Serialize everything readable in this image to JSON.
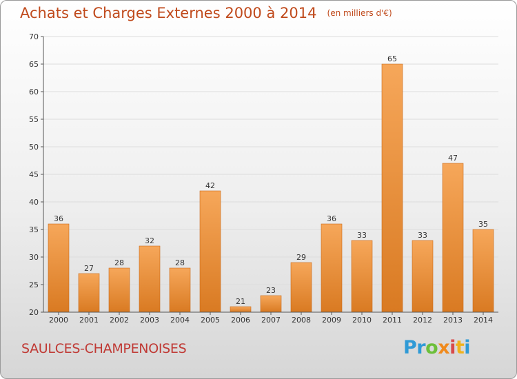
{
  "header": {
    "title": "Achats et Charges Externes 2000 à 2014",
    "unit": "(en milliers d'€)"
  },
  "footer": {
    "location": "SAULCES-CHAMPENOISES",
    "logo": [
      "P",
      "r",
      "o",
      "x",
      "i",
      "t",
      "i"
    ],
    "logo_colors": [
      "#2f9ad6",
      "#2f9ad6",
      "#6cbf3a",
      "#f08a1c",
      "#d84a4a",
      "#f0b21c",
      "#2f9ad6"
    ]
  },
  "colors": {
    "bar_light": "#f6a75a",
    "bar_dark": "#d97a22",
    "bar_edge": "#c8691a",
    "grid": "#dcdcdc",
    "axis": "#555555"
  },
  "chart_data": {
    "type": "bar",
    "categories": [
      "2000",
      "2001",
      "2002",
      "2003",
      "2004",
      "2005",
      "2006",
      "2007",
      "2008",
      "2009",
      "2010",
      "2011",
      "2012",
      "2013",
      "2014"
    ],
    "values": [
      36,
      27,
      28,
      32,
      28,
      42,
      21,
      23,
      29,
      36,
      33,
      65,
      33,
      47,
      35
    ],
    "ylim": [
      20,
      70
    ],
    "yticks": [
      20,
      25,
      30,
      35,
      40,
      45,
      50,
      55,
      60,
      65,
      70
    ],
    "grid": true,
    "data_labels": true
  }
}
